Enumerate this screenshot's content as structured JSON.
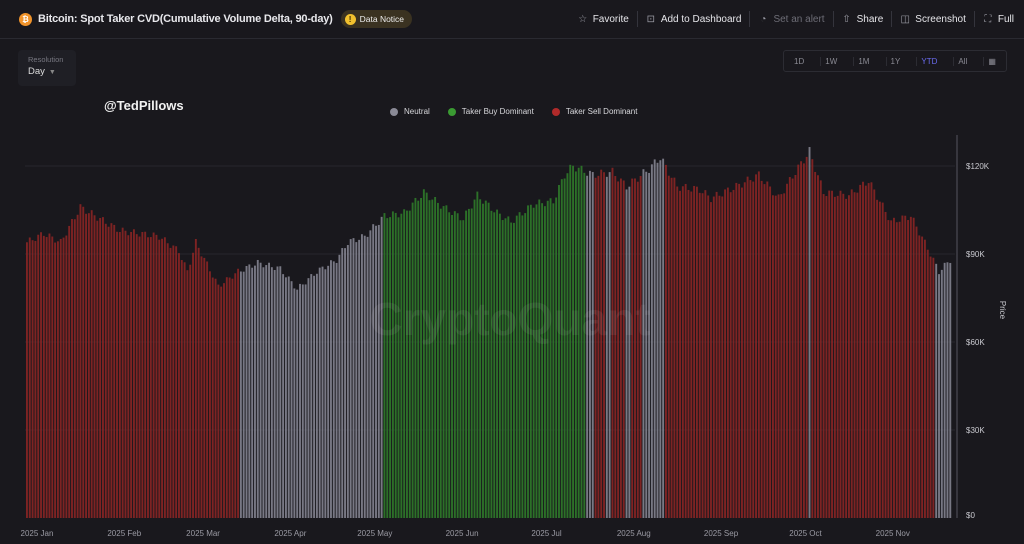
{
  "header": {
    "coin_icon": "bitcoin-icon",
    "title": "Bitcoin: Spot Taker CVD(Cumulative Volume Delta, 90-day)",
    "notice_label": "Data Notice",
    "actions": [
      {
        "label": "Favorite",
        "icon": "star-icon",
        "enabled": true
      },
      {
        "label": "Add to Dashboard",
        "icon": "dashboard-add-icon",
        "enabled": true
      },
      {
        "label": "Set an alert",
        "icon": "bell-icon",
        "enabled": false
      },
      {
        "label": "Share",
        "icon": "share-icon",
        "enabled": true
      },
      {
        "label": "Screenshot",
        "icon": "camera-icon",
        "enabled": true
      },
      {
        "label": "Full",
        "icon": "fullscreen-icon",
        "enabled": true
      }
    ]
  },
  "resolution": {
    "label": "Resolution",
    "value": "Day"
  },
  "ranges": {
    "items": [
      "1D",
      "1W",
      "1M",
      "1Y",
      "YTD",
      "All"
    ],
    "active": "YTD",
    "calendar_icon": "calendar-icon"
  },
  "watermark_handle": "@TedPillows",
  "watermark_logo": "CryptoQuant",
  "colors": {
    "neutral": "#8a8a96",
    "buy": "#2f7a2a",
    "sell": "#8a2525",
    "accent": "#6a6cf0",
    "background": "#19181d"
  },
  "chart_data": {
    "type": "bar",
    "title": "",
    "ylabel": "Price",
    "ylim": [
      0,
      135000
    ],
    "yticks": [
      0,
      30000,
      60000,
      90000,
      120000
    ],
    "ytick_labels": [
      "$0",
      "$30K",
      "$60K",
      "$90K",
      "$120K"
    ],
    "xlabels": [
      "2025 Jan",
      "2025 Feb",
      "2025 Mar",
      "2025 Apr",
      "2025 May",
      "2025 Jun",
      "2025 Jul",
      "2025 Aug",
      "2025 Sep",
      "2025 Oct",
      "2025 Nov"
    ],
    "x_range": [
      "2025-01-01",
      "2025-11-25"
    ],
    "legend": [
      {
        "key": "neutral",
        "label": "Neutral"
      },
      {
        "key": "buy",
        "label": "Taker Buy Dominant"
      },
      {
        "key": "sell",
        "label": "Taker Sell Dominant"
      }
    ],
    "legend_position": "top-center",
    "price_points": [
      [
        "2025-01-01",
        94000
      ],
      [
        "2025-01-07",
        97000
      ],
      [
        "2025-01-13",
        94000
      ],
      [
        "2025-01-20",
        106000
      ],
      [
        "2025-01-27",
        102000
      ],
      [
        "2025-02-03",
        98000
      ],
      [
        "2025-02-10",
        97000
      ],
      [
        "2025-02-17",
        96000
      ],
      [
        "2025-02-24",
        91000
      ],
      [
        "2025-02-27",
        84000
      ],
      [
        "2025-03-02",
        94000
      ],
      [
        "2025-03-10",
        79000
      ],
      [
        "2025-03-17",
        84000
      ],
      [
        "2025-03-24",
        87000
      ],
      [
        "2025-04-01",
        85000
      ],
      [
        "2025-04-07",
        78000
      ],
      [
        "2025-04-14",
        84000
      ],
      [
        "2025-04-21",
        88000
      ],
      [
        "2025-04-25",
        94000
      ],
      [
        "2025-05-01",
        96000
      ],
      [
        "2025-05-08",
        103000
      ],
      [
        "2025-05-15",
        104000
      ],
      [
        "2025-05-22",
        111000
      ],
      [
        "2025-05-29",
        106000
      ],
      [
        "2025-06-05",
        102000
      ],
      [
        "2025-06-10",
        110000
      ],
      [
        "2025-06-17",
        104000
      ],
      [
        "2025-06-22",
        101000
      ],
      [
        "2025-06-30",
        107000
      ],
      [
        "2025-07-07",
        108000
      ],
      [
        "2025-07-11",
        117000
      ],
      [
        "2025-07-14",
        120000
      ],
      [
        "2025-07-21",
        117000
      ],
      [
        "2025-07-28",
        118000
      ],
      [
        "2025-08-02",
        113000
      ],
      [
        "2025-08-10",
        119000
      ],
      [
        "2025-08-14",
        123000
      ],
      [
        "2025-08-20",
        113000
      ],
      [
        "2025-08-28",
        112000
      ],
      [
        "2025-09-01",
        109000
      ],
      [
        "2025-09-10",
        113000
      ],
      [
        "2025-09-18",
        117000
      ],
      [
        "2025-09-25",
        109000
      ],
      [
        "2025-10-01",
        118000
      ],
      [
        "2025-10-06",
        125000
      ],
      [
        "2025-10-11",
        111000
      ],
      [
        "2025-10-20",
        110000
      ],
      [
        "2025-10-27",
        115000
      ],
      [
        "2025-11-04",
        101000
      ],
      [
        "2025-11-11",
        103000
      ],
      [
        "2025-11-17",
        92000
      ],
      [
        "2025-11-21",
        84000
      ],
      [
        "2025-11-25",
        88000
      ]
    ],
    "regimes": [
      [
        "2025-01-01",
        "2025-03-17",
        "sell"
      ],
      [
        "2025-03-18",
        "2025-05-07",
        "neutral"
      ],
      [
        "2025-05-08",
        "2025-07-18",
        "buy"
      ],
      [
        "2025-07-19",
        "2025-07-21",
        "neutral"
      ],
      [
        "2025-07-22",
        "2025-07-25",
        "sell"
      ],
      [
        "2025-07-26",
        "2025-07-27",
        "neutral"
      ],
      [
        "2025-07-28",
        "2025-08-01",
        "sell"
      ],
      [
        "2025-08-02",
        "2025-08-03",
        "neutral"
      ],
      [
        "2025-08-04",
        "2025-08-07",
        "sell"
      ],
      [
        "2025-08-08",
        "2025-08-15",
        "neutral"
      ],
      [
        "2025-08-16",
        "2025-10-05",
        "sell"
      ],
      [
        "2025-10-06",
        "2025-10-06",
        "neutral"
      ],
      [
        "2025-10-07",
        "2025-11-19",
        "sell"
      ],
      [
        "2025-11-20",
        "2025-11-25",
        "neutral"
      ]
    ]
  }
}
